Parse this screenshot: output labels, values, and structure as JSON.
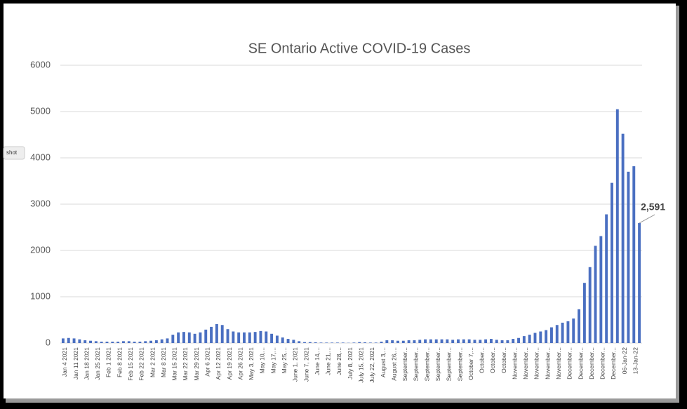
{
  "overlay_tab": "shot",
  "chart_data": {
    "type": "bar",
    "title": "SE Ontario Active COVID-19 Cases",
    "categories": [
      "Jan 4 2021",
      null,
      "Jan 11 2021",
      null,
      "Jan 18 2021",
      null,
      "Jan 25 2021",
      null,
      "Feb 1 2021",
      null,
      "Feb 8 2021",
      null,
      "Feb 15 2021",
      null,
      "Feb 22 2021",
      null,
      "Mar 2 2021",
      null,
      "Mar 8 2021",
      null,
      "Mar 15 2021",
      null,
      "Mar 22 2021",
      null,
      "Mar 29 2021",
      null,
      "Apr 6 2021",
      null,
      "Apr 12 2021",
      null,
      "Apr 19 2021",
      null,
      "Apr 26 2021",
      null,
      "May 3, 2021",
      null,
      "May 10,...",
      null,
      "May 17,...",
      null,
      "May 25,...",
      null,
      "June 1, 2021",
      null,
      "June 7, 2021",
      null,
      "June 14,...",
      null,
      "June 21,...",
      null,
      "June 28,...",
      null,
      "July 8, 2021",
      null,
      "July 15, 2021",
      null,
      "July 22, 2021",
      null,
      "August 3,...",
      null,
      "August 26,...",
      null,
      "September...",
      null,
      "September...",
      null,
      "September...",
      null,
      "September...",
      null,
      "September...",
      null,
      "September...",
      null,
      "October 7,...",
      null,
      "October...",
      null,
      "October...",
      null,
      "October...",
      null,
      "November...",
      null,
      "November...",
      null,
      "November...",
      null,
      "November...",
      null,
      "November...",
      null,
      "December...",
      null,
      "December...",
      null,
      "December...",
      null,
      "December...",
      null,
      "December...",
      null,
      "06-Jan-22",
      null,
      "13-Jan-22",
      null
    ],
    "values": [
      100,
      110,
      100,
      80,
      60,
      50,
      40,
      30,
      30,
      30,
      30,
      40,
      40,
      30,
      30,
      40,
      50,
      60,
      80,
      100,
      180,
      230,
      240,
      230,
      200,
      230,
      290,
      350,
      410,
      390,
      300,
      250,
      230,
      230,
      230,
      240,
      260,
      250,
      200,
      160,
      120,
      90,
      70,
      40,
      20,
      20,
      15,
      10,
      10,
      10,
      10,
      10,
      5,
      10,
      20,
      15,
      10,
      10,
      30,
      60,
      60,
      50,
      50,
      60,
      60,
      70,
      80,
      80,
      80,
      80,
      80,
      70,
      80,
      80,
      80,
      70,
      70,
      80,
      90,
      70,
      60,
      60,
      90,
      110,
      150,
      180,
      220,
      250,
      280,
      340,
      390,
      440,
      470,
      530,
      730,
      1300,
      1640,
      2100,
      2310,
      2780,
      3460,
      5050,
      4520,
      3700,
      3820,
      2591
    ],
    "value_labels": [
      null,
      null,
      null,
      null,
      null,
      null,
      null,
      null,
      null,
      null,
      null,
      null,
      null,
      null,
      null,
      null,
      null,
      null,
      null,
      null,
      null,
      null,
      null,
      null,
      null,
      null,
      null,
      null,
      null,
      null,
      null,
      null,
      null,
      null,
      null,
      null,
      null,
      null,
      null,
      null,
      null,
      null,
      null,
      null,
      null,
      null,
      null,
      null,
      null,
      null,
      null,
      null,
      null,
      null,
      null,
      null,
      null,
      null,
      null,
      null,
      null,
      null,
      null,
      null,
      null,
      null,
      null,
      null,
      null,
      null,
      null,
      null,
      null,
      null,
      null,
      null,
      null,
      null,
      null,
      null,
      null,
      null,
      null,
      null,
      null,
      null,
      null,
      null,
      null,
      null,
      null,
      null,
      null,
      null,
      null,
      null,
      null,
      null,
      null,
      null,
      null,
      null,
      null,
      null,
      null,
      "2,591"
    ],
    "color": "#4a6fc1",
    "ylim": [
      0,
      6000
    ],
    "yticks": [
      0,
      1000,
      2000,
      3000,
      4000,
      5000,
      6000
    ],
    "grid": true
  }
}
